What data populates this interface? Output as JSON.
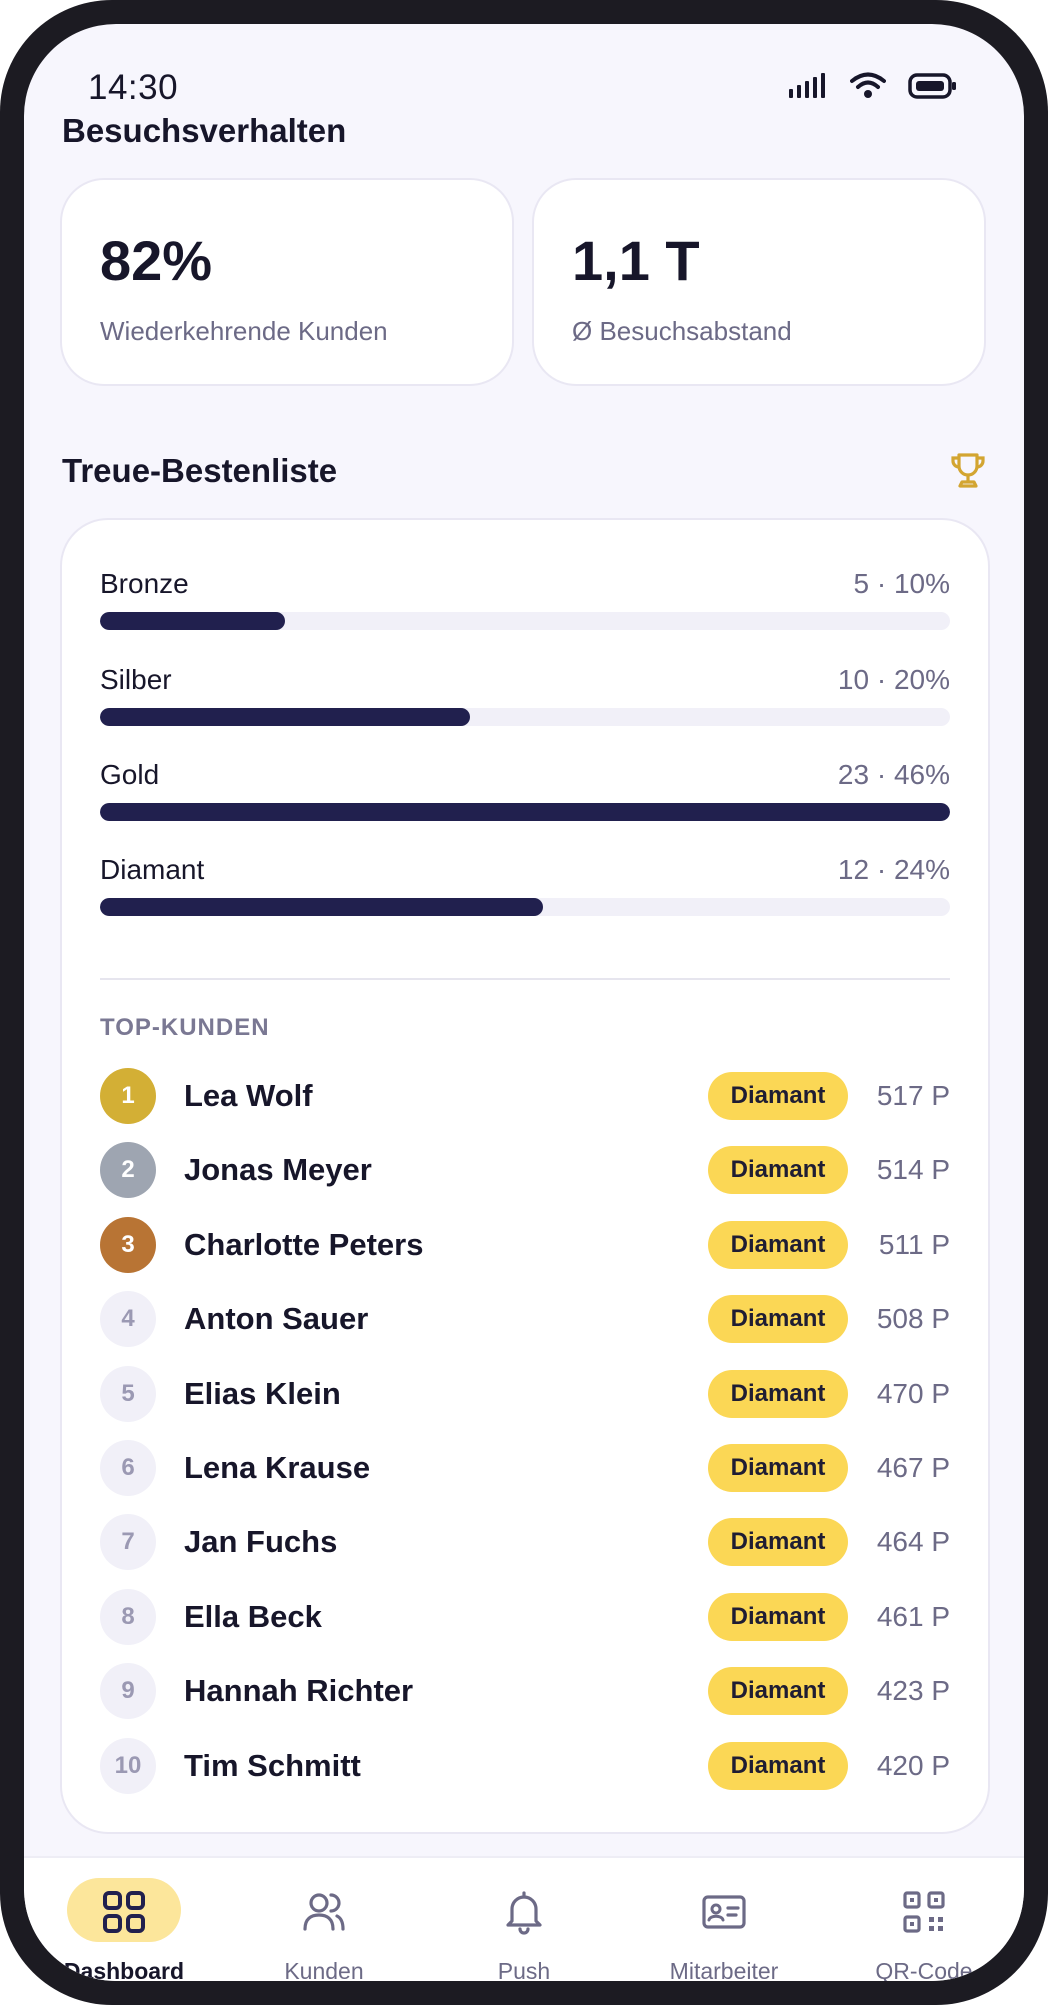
{
  "status_bar": {
    "time": "14:30"
  },
  "visit_behavior": {
    "title": "Besuchsverhalten",
    "stats": [
      {
        "value": "82%",
        "label": "Wiederkehrende Kunden"
      },
      {
        "value": "1,1 T",
        "label": "Ø Besuchsabstand"
      }
    ]
  },
  "leaderboard": {
    "title": "Treue-Bestenliste",
    "tiers": [
      {
        "name": "Bronze",
        "stat": "5 · 10%",
        "share": 0.1
      },
      {
        "name": "Silber",
        "stat": "10 · 20%",
        "share": 0.2
      },
      {
        "name": "Gold",
        "stat": "23 · 46%",
        "share": 0.46
      },
      {
        "name": "Diamant",
        "stat": "12 · 24%",
        "share": 0.24
      }
    ],
    "top_label": "TOP-KUNDEN",
    "customers": [
      {
        "rank": "1",
        "name": "Lea Wolf",
        "tier": "Diamant",
        "points": "517 P"
      },
      {
        "rank": "2",
        "name": "Jonas Meyer",
        "tier": "Diamant",
        "points": "514 P"
      },
      {
        "rank": "3",
        "name": "Charlotte Peters",
        "tier": "Diamant",
        "points": "511 P"
      },
      {
        "rank": "4",
        "name": "Anton Sauer",
        "tier": "Diamant",
        "points": "508 P"
      },
      {
        "rank": "5",
        "name": "Elias Klein",
        "tier": "Diamant",
        "points": "470 P"
      },
      {
        "rank": "6",
        "name": "Lena Krause",
        "tier": "Diamant",
        "points": "467 P"
      },
      {
        "rank": "7",
        "name": "Jan Fuchs",
        "tier": "Diamant",
        "points": "464 P"
      },
      {
        "rank": "8",
        "name": "Ella Beck",
        "tier": "Diamant",
        "points": "461 P"
      },
      {
        "rank": "9",
        "name": "Hannah Richter",
        "tier": "Diamant",
        "points": "423 P"
      },
      {
        "rank": "10",
        "name": "Tim Schmitt",
        "tier": "Diamant",
        "points": "420 P"
      }
    ]
  },
  "nav": {
    "items": [
      {
        "label": "Dashboard",
        "icon": "grid-icon",
        "active": true
      },
      {
        "label": "Kunden",
        "icon": "users-icon",
        "active": false
      },
      {
        "label": "Push",
        "icon": "bell-icon",
        "active": false
      },
      {
        "label": "Mitarbeiter",
        "icon": "id-card-icon",
        "active": false
      },
      {
        "label": "QR-Code",
        "icon": "qr-code-icon",
        "active": false
      }
    ]
  },
  "colors": {
    "accent_dark": "#21204e",
    "badge_yellow": "#fbd755",
    "active_pill": "#fce69b",
    "gold_rank": "#d3af35",
    "silver_rank": "#9ea5b1",
    "bronze_rank": "#b87434",
    "trophy": "#d3a531"
  }
}
